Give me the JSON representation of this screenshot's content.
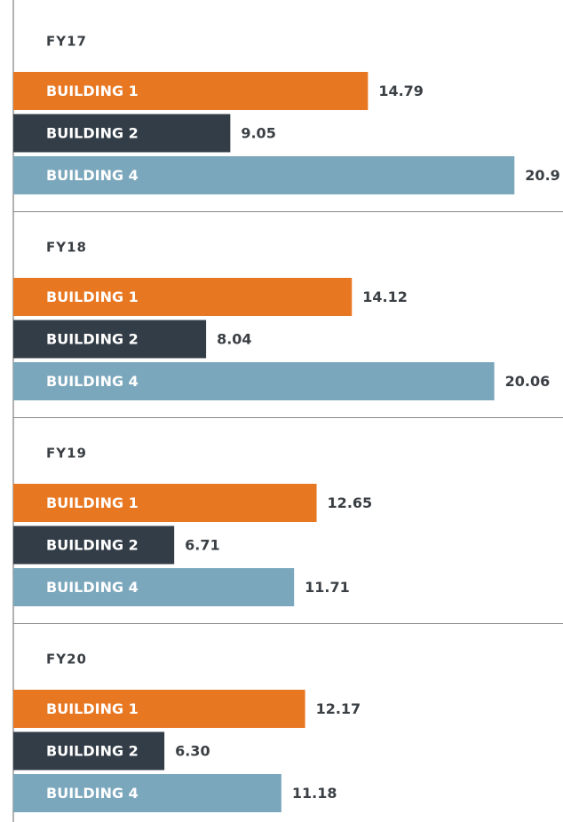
{
  "chart_data": {
    "type": "bar",
    "orientation": "horizontal",
    "categories": [
      "FY17",
      "FY18",
      "FY19",
      "FY20"
    ],
    "series": [
      {
        "name": "BUILDING 1",
        "color": "#e87722",
        "values": [
          14.79,
          14.12,
          12.65,
          12.17
        ]
      },
      {
        "name": "BUILDING 2",
        "color": "#333d47",
        "values": [
          9.05,
          8.04,
          6.71,
          6.3
        ],
        "value_labels": [
          "9.05",
          "8.04",
          "6.71",
          "6.30"
        ]
      },
      {
        "name": "BUILDING 4",
        "color": "#7ba7bc",
        "values": [
          20.9,
          20.06,
          11.71,
          11.18
        ]
      }
    ]
  }
}
